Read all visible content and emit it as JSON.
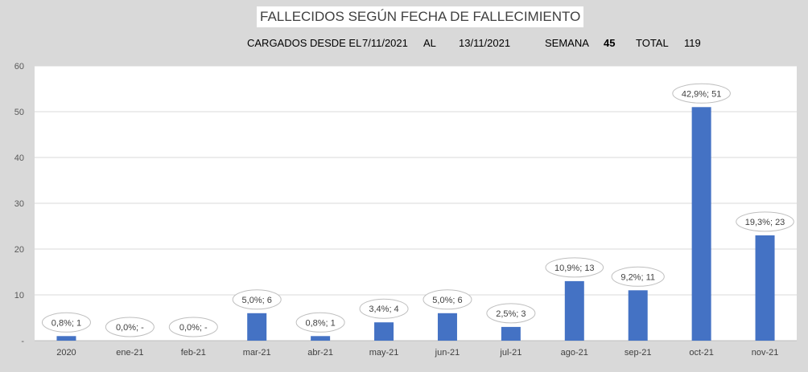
{
  "chart_data": {
    "type": "bar",
    "title": "FALLECIDOS SEGÚN FECHA DE FALLECIMIENTO",
    "subtitle": {
      "loaded_label": "CARGADOS DESDE EL",
      "from_date": "7/11/2021",
      "to_label": "AL",
      "to_date": "13/11/2021",
      "week_label": "SEMANA",
      "week_value": "45",
      "total_label": "TOTAL",
      "total_value": "119"
    },
    "categories": [
      "2020",
      "ene-21",
      "feb-21",
      "mar-21",
      "abr-21",
      "may-21",
      "jun-21",
      "jul-21",
      "ago-21",
      "sep-21",
      "oct-21",
      "nov-21"
    ],
    "values": [
      1,
      0,
      0,
      6,
      1,
      4,
      6,
      3,
      13,
      11,
      51,
      23
    ],
    "data_labels": [
      "0,8%; 1",
      "0,0%; -",
      "0,0%; -",
      "5,0%; 6",
      "0,8%; 1",
      "3,4%; 4",
      "5,0%; 6",
      "2,5%; 3",
      "10,9%; 13",
      "9,2%; 11",
      "42,9%; 51",
      "19,3%; 23"
    ],
    "y_ticks": [
      "-",
      "10",
      "20",
      "30",
      "40",
      "50",
      "60"
    ],
    "ylim": [
      0,
      60
    ],
    "grid": true,
    "bar_color": "#4472c4"
  }
}
